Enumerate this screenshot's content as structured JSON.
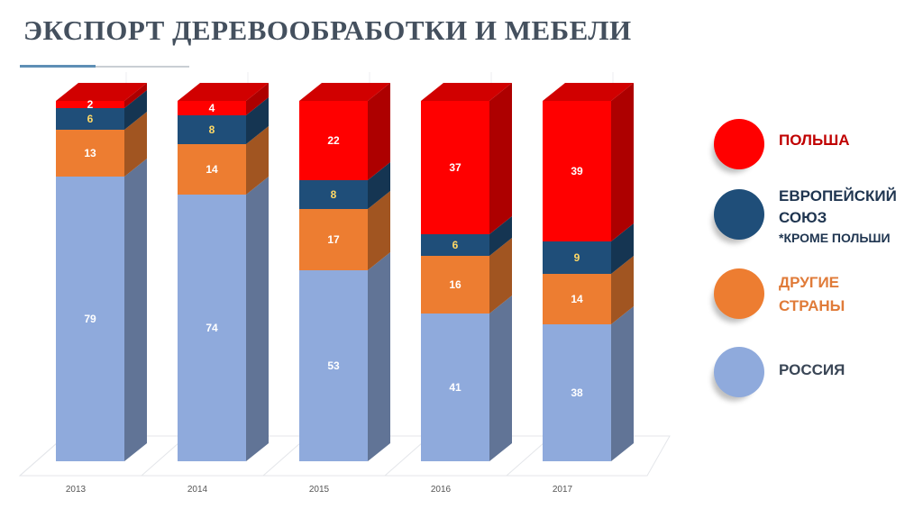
{
  "chart_data": {
    "type": "bar",
    "stacked": true,
    "style": "3d",
    "title": "ЭКСПОРТ ДЕРЕВООБРАБОТКИ И МЕБЕЛИ",
    "categories": [
      "2013",
      "2014",
      "2015",
      "2016",
      "2017"
    ],
    "series": [
      {
        "name": "РОССИЯ",
        "values": [
          79,
          74,
          53,
          41,
          38
        ],
        "color": "#8faadc",
        "label_color": "#ffffff"
      },
      {
        "name": "ДРУГИЕ СТРАНЫ",
        "values": [
          13,
          14,
          17,
          16,
          14
        ],
        "color": "#ed7d31",
        "label_color": "#ffffff"
      },
      {
        "name": "ЕВРОПЕЙСКИЙ СОЮЗ",
        "note": "*КРОМЕ ПОЛЬШИ",
        "values": [
          6,
          8,
          8,
          6,
          9
        ],
        "color": "#1f4e79",
        "label_color": "#ffd966"
      },
      {
        "name": "ПОЛЬША",
        "values": [
          2,
          4,
          22,
          37,
          39
        ],
        "color": "#ff0000",
        "label_color": "#ffffff"
      }
    ],
    "ylim": [
      0,
      100
    ],
    "legend_position": "right"
  },
  "legend": [
    {
      "line1": "ПОЛЬША",
      "color": "#ff0000",
      "text_color": "#c00000"
    },
    {
      "line1": "ЕВРОПЕЙСКИЙ",
      "line2": "СОЮЗ",
      "sub": "*КРОМЕ ПОЛЬШИ",
      "color": "#1f4e79",
      "text_color": "#1f3550"
    },
    {
      "line1": "ДРУГИЕ",
      "line2": "СТРАНЫ",
      "color": "#ed7d31",
      "text_color": "#e07b39"
    },
    {
      "line1": "РОССИЯ",
      "color": "#8faadc",
      "text_color": "#3a4656"
    }
  ]
}
